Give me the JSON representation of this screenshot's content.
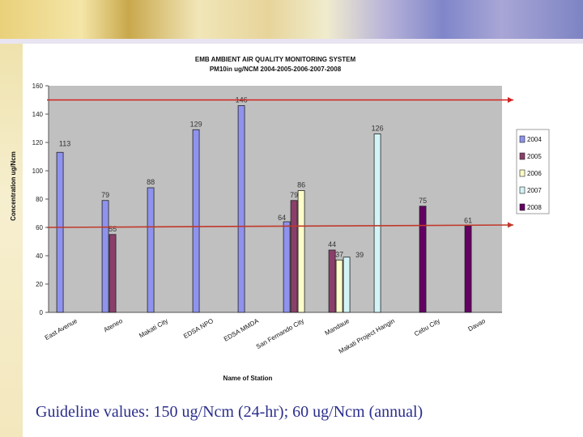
{
  "chart_data": {
    "type": "bar",
    "title": "EMB AMBIENT AIR QUALITY MONITORING SYSTEM",
    "subtitle": "PM10in ug/NCM 2004-2005-2006-2007-2008",
    "xlabel": "Name of Station",
    "ylabel": "Concentration ug/Ncm",
    "ylim": [
      0,
      160
    ],
    "yticks": [
      0,
      20,
      40,
      60,
      80,
      100,
      120,
      140,
      160
    ],
    "grid": false,
    "legend_position": "right",
    "categories": [
      "East Avenue",
      "Ateneo",
      "Makati City",
      "EDSA NPO",
      "EDSA MMDA",
      "San Fernando City",
      "Mandaue",
      "Makati Project Hangin",
      "Cebu City",
      "Davao"
    ],
    "series": [
      {
        "name": "2004",
        "color": "#8f93ee",
        "values": [
          113,
          79,
          88,
          129,
          146,
          64,
          null,
          null,
          null,
          null
        ]
      },
      {
        "name": "2005",
        "color": "#8a3f6a",
        "values": [
          null,
          55,
          null,
          null,
          null,
          79,
          44,
          null,
          null,
          null
        ]
      },
      {
        "name": "2006",
        "color": "#fdfdc9",
        "values": [
          null,
          null,
          null,
          null,
          null,
          86,
          37,
          null,
          null,
          null
        ]
      },
      {
        "name": "2007",
        "color": "#d3f4f6",
        "values": [
          null,
          null,
          null,
          null,
          null,
          null,
          39,
          126,
          null,
          null
        ]
      },
      {
        "name": "2008",
        "color": "#640064",
        "values": [
          null,
          null,
          null,
          null,
          null,
          null,
          null,
          null,
          75,
          61
        ]
      }
    ],
    "data_labels": [
      {
        "text": "113",
        "series": 0,
        "category": 0
      },
      {
        "text": "79",
        "series": 0,
        "category": 1
      },
      {
        "text": "55",
        "series": 1,
        "category": 1
      },
      {
        "text": "88",
        "series": 0,
        "category": 2
      },
      {
        "text": "129",
        "series": 0,
        "category": 3
      },
      {
        "text": "146",
        "series": 0,
        "category": 4
      },
      {
        "text": "64",
        "series": 0,
        "category": 5
      },
      {
        "text": "79",
        "series": 1,
        "category": 5
      },
      {
        "text": "86",
        "series": 2,
        "category": 5
      },
      {
        "text": "44",
        "series": 1,
        "category": 6
      },
      {
        "text": "37",
        "series": 2,
        "category": 6
      },
      {
        "text": "39",
        "series": 3,
        "category": 6
      },
      {
        "text": "126",
        "series": 3,
        "category": 7
      },
      {
        "text": "75",
        "series": 4,
        "category": 8
      },
      {
        "text": "61",
        "series": 4,
        "category": 9
      }
    ],
    "reference_lines": [
      {
        "value": 150,
        "color": "#d42020"
      },
      {
        "value": 60,
        "color": "#c0392b"
      }
    ]
  },
  "caption": "Guideline values: 150 ug/Ncm (24-hr); 60 ug/Ncm (annual)"
}
